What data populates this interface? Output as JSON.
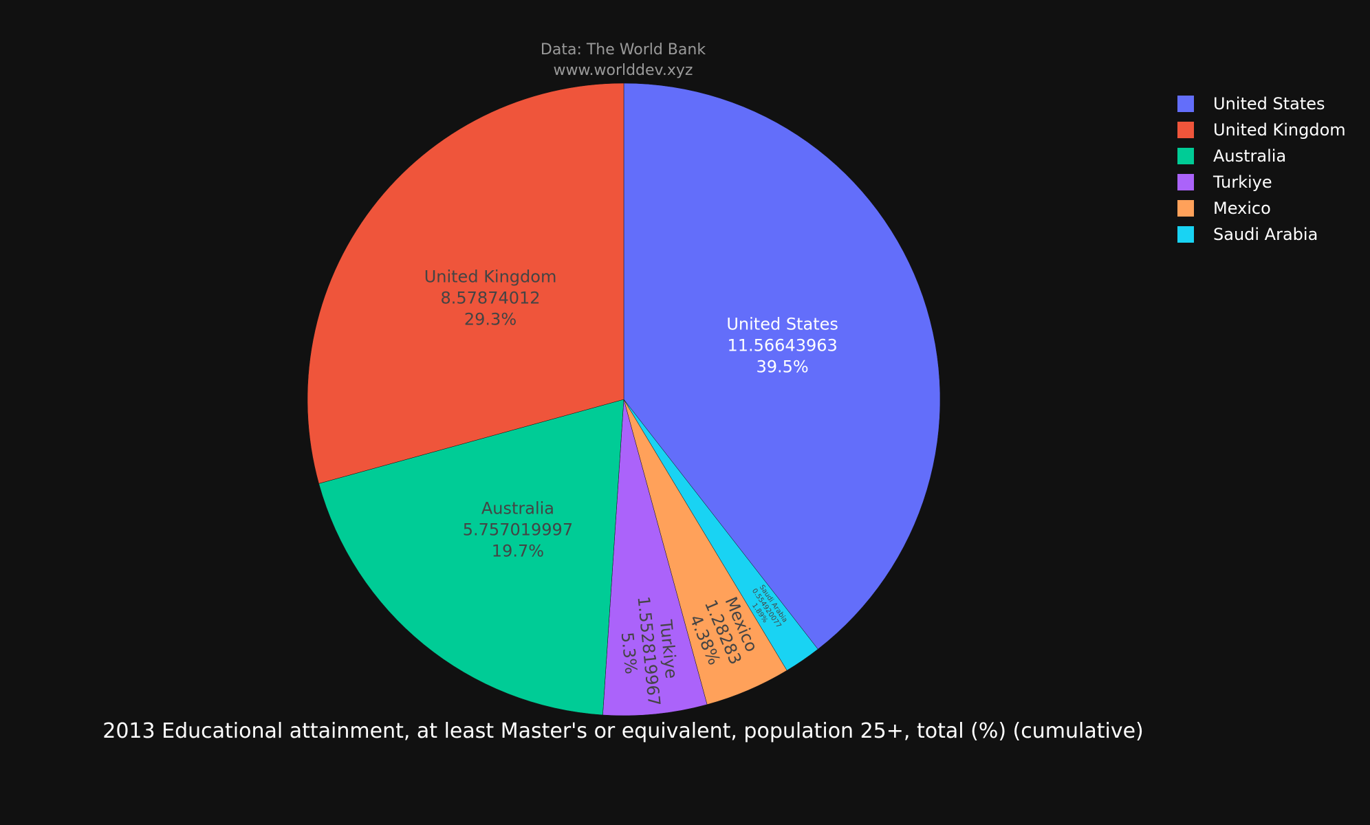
{
  "source": {
    "line1": "Data: The World Bank",
    "line2": "www.worlddev.xyz"
  },
  "chart_data": {
    "type": "pie",
    "title": "2013 Educational attainment, at least Master's or equivalent, population 25+, total (%) (cumulative)",
    "slices": [
      {
        "label": "United States",
        "value": 11.56643963,
        "value_text": "11.56643963",
        "percent": "39.5%",
        "color": "#636efa",
        "text_color": "#ffffff"
      },
      {
        "label": "Saudi Arabia",
        "value": 0.554920077,
        "value_text": "0.554920077",
        "percent": "1.89%",
        "color": "#19d3f3",
        "text_color": "#444444"
      },
      {
        "label": "Mexico",
        "value": 1.28283,
        "value_text": "1.28283",
        "percent": "4.38%",
        "color": "#ffa15a",
        "text_color": "#444444"
      },
      {
        "label": "Turkiye",
        "value": 1.552819967,
        "value_text": "1.552819967",
        "percent": "5.3%",
        "color": "#ab63fa",
        "text_color": "#444444"
      },
      {
        "label": "Australia",
        "value": 5.757019997,
        "value_text": "5.757019997",
        "percent": "19.7%",
        "color": "#00cc96",
        "text_color": "#444444"
      },
      {
        "label": "United Kingdom",
        "value": 8.57874012,
        "value_text": "8.57874012",
        "percent": "29.3%",
        "color": "#ef553b",
        "text_color": "#444444"
      }
    ],
    "legend": [
      {
        "label": "United States",
        "color": "#636efa"
      },
      {
        "label": "United Kingdom",
        "color": "#ef553b"
      },
      {
        "label": "Australia",
        "color": "#00cc96"
      },
      {
        "label": "Turkiye",
        "color": "#ab63fa"
      },
      {
        "label": "Mexico",
        "color": "#ffa15a"
      },
      {
        "label": "Saudi Arabia",
        "color": "#19d3f3"
      }
    ],
    "legend_position": "top-right",
    "direction": "clockwise"
  }
}
